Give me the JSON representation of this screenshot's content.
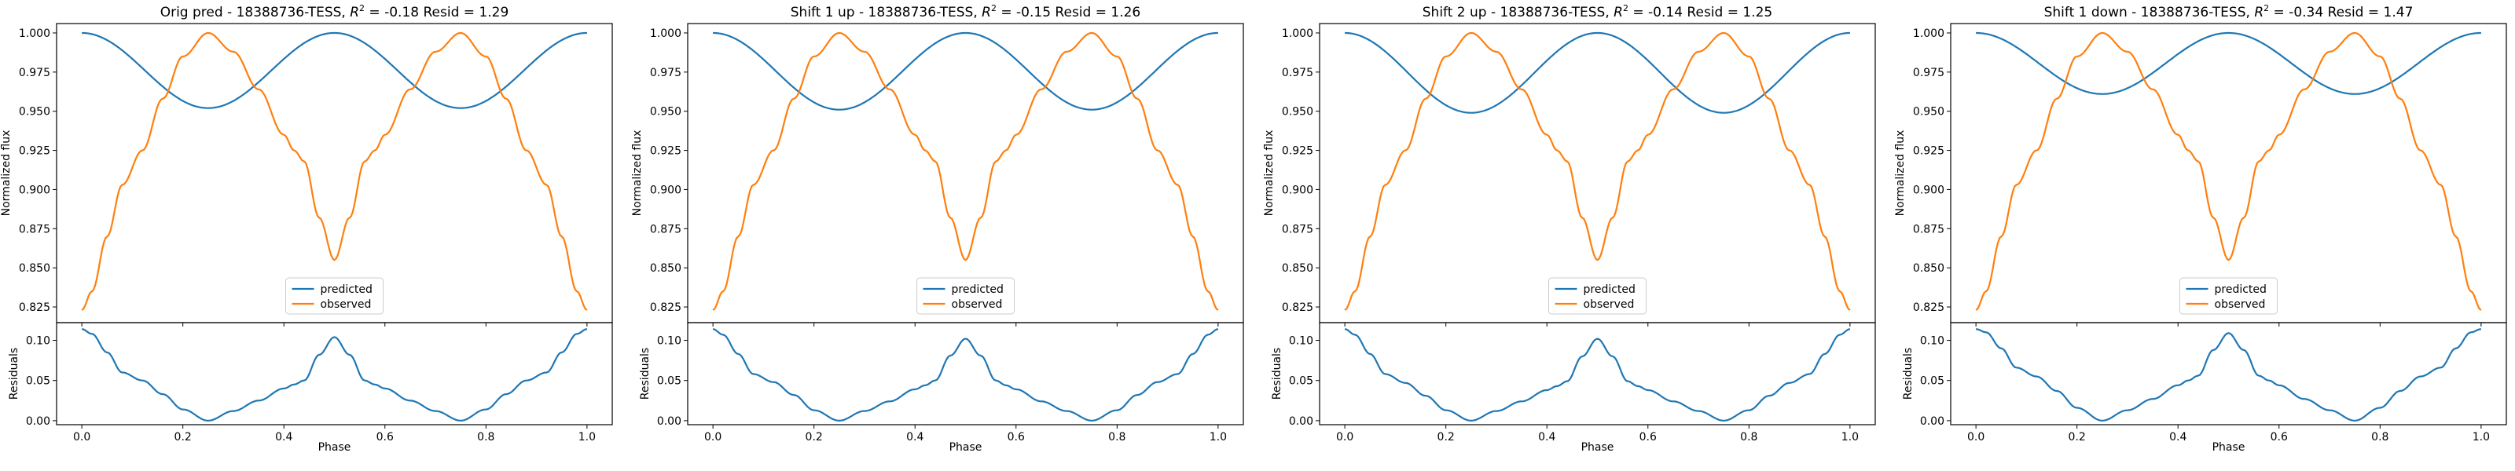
{
  "colors": {
    "predicted": "#1f77b4",
    "observed": "#ff7f0e"
  },
  "panels": [
    {
      "title_prefix": "Orig pred - 18388736-TESS, ",
      "r2": "-0.18",
      "resid": "1.29"
    },
    {
      "title_prefix": "Shift 1 up - 18388736-TESS, ",
      "r2": "-0.15",
      "resid": "1.26"
    },
    {
      "title_prefix": "Shift 2 up - 18388736-TESS, ",
      "r2": "-0.14",
      "resid": "1.25"
    },
    {
      "title_prefix": "Shift 1 down - 18388736-TESS, ",
      "r2": "-0.34",
      "resid": "1.47"
    }
  ],
  "labels": {
    "title_r2_symbol": "R",
    "title_r2_sup": "2",
    "title_resid_label": "Resid",
    "top_ylabel": "Normalized flux",
    "bottom_ylabel": "Residuals",
    "xlabel": "Phase",
    "legend_predicted": "predicted",
    "legend_observed": "observed"
  },
  "chart_data": [
    {
      "type": "line",
      "title": "Orig pred - 18388736-TESS, R^2 = -0.18 Resid = 1.29",
      "xlabel": "Phase",
      "ylabel": "Normalized flux",
      "xlim": [
        -0.05,
        1.05
      ],
      "ylim": [
        0.815,
        1.006
      ],
      "yticks": [
        0.825,
        0.85,
        0.875,
        0.9,
        0.925,
        0.95,
        0.975,
        1.0
      ],
      "xticks": [
        0.0,
        0.2,
        0.4,
        0.6,
        0.8,
        1.0
      ],
      "legend": "lower center",
      "series": [
        {
          "name": "predicted",
          "params": {
            "mean": 0.976,
            "amp": 0.024
          }
        },
        {
          "name": "observed",
          "x": [
            0.0,
            0.02,
            0.05,
            0.08,
            0.12,
            0.16,
            0.2,
            0.25,
            0.3,
            0.35,
            0.4,
            0.42,
            0.44,
            0.47,
            0.5,
            0.53,
            0.56,
            0.58,
            0.6,
            0.65,
            0.7,
            0.75,
            0.8,
            0.84,
            0.88,
            0.92,
            0.95,
            0.98,
            1.0
          ],
          "y": [
            0.823,
            0.835,
            0.87,
            0.903,
            0.925,
            0.958,
            0.985,
            1.0,
            0.988,
            0.964,
            0.935,
            0.925,
            0.918,
            0.882,
            0.855,
            0.882,
            0.918,
            0.925,
            0.935,
            0.964,
            0.988,
            1.0,
            0.985,
            0.958,
            0.925,
            0.903,
            0.87,
            0.835,
            0.823
          ]
        }
      ],
      "residuals": {
        "ylabel": "Residuals",
        "ylim": [
          -0.005,
          0.122
        ],
        "yticks": [
          0.0,
          0.05,
          0.1
        ],
        "x": [
          0.0,
          0.02,
          0.05,
          0.08,
          0.12,
          0.16,
          0.2,
          0.25,
          0.3,
          0.35,
          0.4,
          0.42,
          0.44,
          0.47,
          0.5,
          0.53,
          0.56,
          0.58,
          0.6,
          0.65,
          0.7,
          0.75,
          0.8,
          0.84,
          0.88,
          0.92,
          0.95,
          0.98,
          1.0
        ],
        "y": [
          0.114,
          0.108,
          0.085,
          0.06,
          0.05,
          0.033,
          0.014,
          0.0,
          0.012,
          0.025,
          0.04,
          0.045,
          0.05,
          0.082,
          0.104,
          0.082,
          0.05,
          0.045,
          0.04,
          0.025,
          0.012,
          0.0,
          0.014,
          0.033,
          0.05,
          0.06,
          0.085,
          0.108,
          0.114
        ]
      }
    },
    {
      "type": "line",
      "title": "Shift 1 up - 18388736-TESS, R^2 = -0.15 Resid = 1.26",
      "xlabel": "Phase",
      "ylabel": "Normalized flux",
      "xlim": [
        -0.05,
        1.05
      ],
      "ylim": [
        0.815,
        1.006
      ],
      "yticks": [
        0.825,
        0.85,
        0.875,
        0.9,
        0.925,
        0.95,
        0.975,
        1.0
      ],
      "xticks": [
        0.0,
        0.2,
        0.4,
        0.6,
        0.8,
        1.0
      ],
      "legend": "lower center",
      "series": [
        {
          "name": "predicted",
          "params": {
            "mean": 0.9755,
            "amp": 0.0245
          }
        },
        {
          "name": "observed",
          "x": [
            0.0,
            0.02,
            0.05,
            0.08,
            0.12,
            0.16,
            0.2,
            0.25,
            0.3,
            0.35,
            0.4,
            0.42,
            0.44,
            0.47,
            0.5,
            0.53,
            0.56,
            0.58,
            0.6,
            0.65,
            0.7,
            0.75,
            0.8,
            0.84,
            0.88,
            0.92,
            0.95,
            0.98,
            1.0
          ],
          "y": [
            0.823,
            0.835,
            0.87,
            0.903,
            0.925,
            0.958,
            0.985,
            1.0,
            0.988,
            0.964,
            0.935,
            0.925,
            0.918,
            0.882,
            0.855,
            0.882,
            0.918,
            0.925,
            0.935,
            0.964,
            0.988,
            1.0,
            0.985,
            0.958,
            0.925,
            0.903,
            0.87,
            0.835,
            0.823
          ]
        }
      ],
      "residuals": {
        "ylabel": "Residuals",
        "ylim": [
          -0.005,
          0.122
        ],
        "yticks": [
          0.0,
          0.05,
          0.1
        ],
        "x": [
          0.0,
          0.02,
          0.05,
          0.08,
          0.12,
          0.16,
          0.2,
          0.25,
          0.3,
          0.35,
          0.4,
          0.42,
          0.44,
          0.47,
          0.5,
          0.53,
          0.56,
          0.58,
          0.6,
          0.65,
          0.7,
          0.75,
          0.8,
          0.84,
          0.88,
          0.92,
          0.95,
          0.98,
          1.0
        ],
        "y": [
          0.114,
          0.107,
          0.083,
          0.058,
          0.048,
          0.032,
          0.013,
          0.0,
          0.012,
          0.024,
          0.039,
          0.044,
          0.05,
          0.081,
          0.102,
          0.081,
          0.05,
          0.044,
          0.039,
          0.024,
          0.012,
          0.0,
          0.013,
          0.032,
          0.048,
          0.058,
          0.083,
          0.107,
          0.114
        ]
      }
    },
    {
      "type": "line",
      "title": "Shift 2 up - 18388736-TESS, R^2 = -0.14 Resid = 1.25",
      "xlabel": "Phase",
      "ylabel": "Normalized flux",
      "xlim": [
        -0.05,
        1.05
      ],
      "ylim": [
        0.815,
        1.006
      ],
      "yticks": [
        0.825,
        0.85,
        0.875,
        0.9,
        0.925,
        0.95,
        0.975,
        1.0
      ],
      "xticks": [
        0.0,
        0.2,
        0.4,
        0.6,
        0.8,
        1.0
      ],
      "legend": "lower center",
      "series": [
        {
          "name": "predicted",
          "params": {
            "mean": 0.9745,
            "amp": 0.0255
          }
        },
        {
          "name": "observed",
          "x": [
            0.0,
            0.02,
            0.05,
            0.08,
            0.12,
            0.16,
            0.2,
            0.25,
            0.3,
            0.35,
            0.4,
            0.42,
            0.44,
            0.47,
            0.5,
            0.53,
            0.56,
            0.58,
            0.6,
            0.65,
            0.7,
            0.75,
            0.8,
            0.84,
            0.88,
            0.92,
            0.95,
            0.98,
            1.0
          ],
          "y": [
            0.823,
            0.835,
            0.87,
            0.903,
            0.925,
            0.958,
            0.985,
            1.0,
            0.988,
            0.964,
            0.935,
            0.925,
            0.918,
            0.882,
            0.855,
            0.882,
            0.918,
            0.925,
            0.935,
            0.964,
            0.988,
            1.0,
            0.985,
            0.958,
            0.925,
            0.903,
            0.87,
            0.835,
            0.823
          ]
        }
      ],
      "residuals": {
        "ylabel": "Residuals",
        "ylim": [
          -0.005,
          0.122
        ],
        "yticks": [
          0.0,
          0.05,
          0.1
        ],
        "x": [
          0.0,
          0.02,
          0.05,
          0.08,
          0.12,
          0.16,
          0.2,
          0.25,
          0.3,
          0.35,
          0.4,
          0.42,
          0.44,
          0.47,
          0.5,
          0.53,
          0.56,
          0.58,
          0.6,
          0.65,
          0.7,
          0.75,
          0.8,
          0.84,
          0.88,
          0.92,
          0.95,
          0.98,
          1.0
        ],
        "y": [
          0.114,
          0.107,
          0.083,
          0.058,
          0.047,
          0.031,
          0.013,
          0.0,
          0.012,
          0.024,
          0.038,
          0.043,
          0.049,
          0.08,
          0.102,
          0.08,
          0.049,
          0.043,
          0.038,
          0.024,
          0.012,
          0.0,
          0.013,
          0.031,
          0.047,
          0.058,
          0.083,
          0.107,
          0.114
        ]
      }
    },
    {
      "type": "line",
      "title": "Shift 1 down - 18388736-TESS, R^2 = -0.34 Resid = 1.47",
      "xlabel": "Phase",
      "ylabel": "Normalized flux",
      "xlim": [
        -0.05,
        1.05
      ],
      "ylim": [
        0.815,
        1.006
      ],
      "yticks": [
        0.825,
        0.85,
        0.875,
        0.9,
        0.925,
        0.95,
        0.975,
        1.0
      ],
      "xticks": [
        0.0,
        0.2,
        0.4,
        0.6,
        0.8,
        1.0
      ],
      "legend": "lower center",
      "series": [
        {
          "name": "predicted",
          "params": {
            "mean": 0.9805,
            "amp": 0.0195
          }
        },
        {
          "name": "observed",
          "x": [
            0.0,
            0.02,
            0.05,
            0.08,
            0.12,
            0.16,
            0.2,
            0.25,
            0.3,
            0.35,
            0.4,
            0.42,
            0.44,
            0.47,
            0.5,
            0.53,
            0.56,
            0.58,
            0.6,
            0.65,
            0.7,
            0.75,
            0.8,
            0.84,
            0.88,
            0.92,
            0.95,
            0.98,
            1.0
          ],
          "y": [
            0.823,
            0.835,
            0.87,
            0.903,
            0.925,
            0.958,
            0.985,
            1.0,
            0.988,
            0.964,
            0.935,
            0.925,
            0.918,
            0.882,
            0.855,
            0.882,
            0.918,
            0.925,
            0.935,
            0.964,
            0.988,
            1.0,
            0.985,
            0.958,
            0.925,
            0.903,
            0.87,
            0.835,
            0.823
          ]
        }
      ],
      "residuals": {
        "ylabel": "Residuals",
        "ylim": [
          -0.005,
          0.122
        ],
        "yticks": [
          0.0,
          0.05,
          0.1
        ],
        "x": [
          0.0,
          0.02,
          0.05,
          0.08,
          0.12,
          0.16,
          0.2,
          0.25,
          0.3,
          0.35,
          0.4,
          0.42,
          0.44,
          0.47,
          0.5,
          0.53,
          0.56,
          0.58,
          0.6,
          0.65,
          0.7,
          0.75,
          0.8,
          0.84,
          0.88,
          0.92,
          0.95,
          0.98,
          1.0
        ],
        "y": [
          0.114,
          0.11,
          0.09,
          0.066,
          0.055,
          0.037,
          0.016,
          0.0,
          0.013,
          0.027,
          0.044,
          0.05,
          0.056,
          0.088,
          0.109,
          0.088,
          0.056,
          0.05,
          0.044,
          0.027,
          0.013,
          0.0,
          0.016,
          0.037,
          0.055,
          0.066,
          0.09,
          0.11,
          0.114
        ]
      }
    }
  ]
}
